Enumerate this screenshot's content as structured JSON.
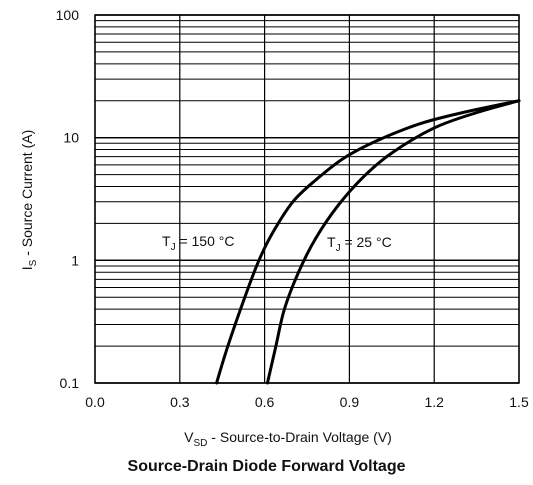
{
  "chart_data": {
    "type": "line",
    "title": "Source-Drain Diode Forward Voltage",
    "xlabel": {
      "prefix": "V",
      "sub": "SD",
      "suffix": " - Source-to-Drain Voltage (V)"
    },
    "ylabel": {
      "prefix": "I",
      "sub": "S",
      "suffix": " - Source Current (A)"
    },
    "xlim": [
      0,
      1.5
    ],
    "ylim": [
      0.1,
      100
    ],
    "yscale": "log",
    "grid": true,
    "x_ticks": [
      "0.0",
      "0.3",
      "0.6",
      "0.9",
      "1.2",
      "1.5"
    ],
    "y_ticks": [
      "0.1",
      "1",
      "10",
      "100"
    ],
    "series": [
      {
        "name": "T_J = 150 °C",
        "label_main": "T",
        "label_sub": "J",
        "label_rest": " = 150 °C",
        "x": [
          0.43,
          0.47,
          0.53,
          0.58,
          0.63,
          0.7,
          0.78,
          0.88,
          1.0,
          1.15,
          1.3,
          1.5
        ],
        "y": [
          0.1,
          0.2,
          0.5,
          1.0,
          1.7,
          3.0,
          4.5,
          6.8,
          9.5,
          13,
          16,
          20
        ]
      },
      {
        "name": "T_J = 25 °C",
        "label_main": "T",
        "label_sub": "J",
        "label_rest": " = 25 °C",
        "x": [
          0.61,
          0.64,
          0.67,
          0.72,
          0.78,
          0.86,
          0.95,
          1.05,
          1.2,
          1.35,
          1.5
        ],
        "y": [
          0.1,
          0.2,
          0.4,
          0.8,
          1.5,
          2.8,
          4.8,
          7.5,
          12,
          16,
          20
        ]
      }
    ]
  }
}
